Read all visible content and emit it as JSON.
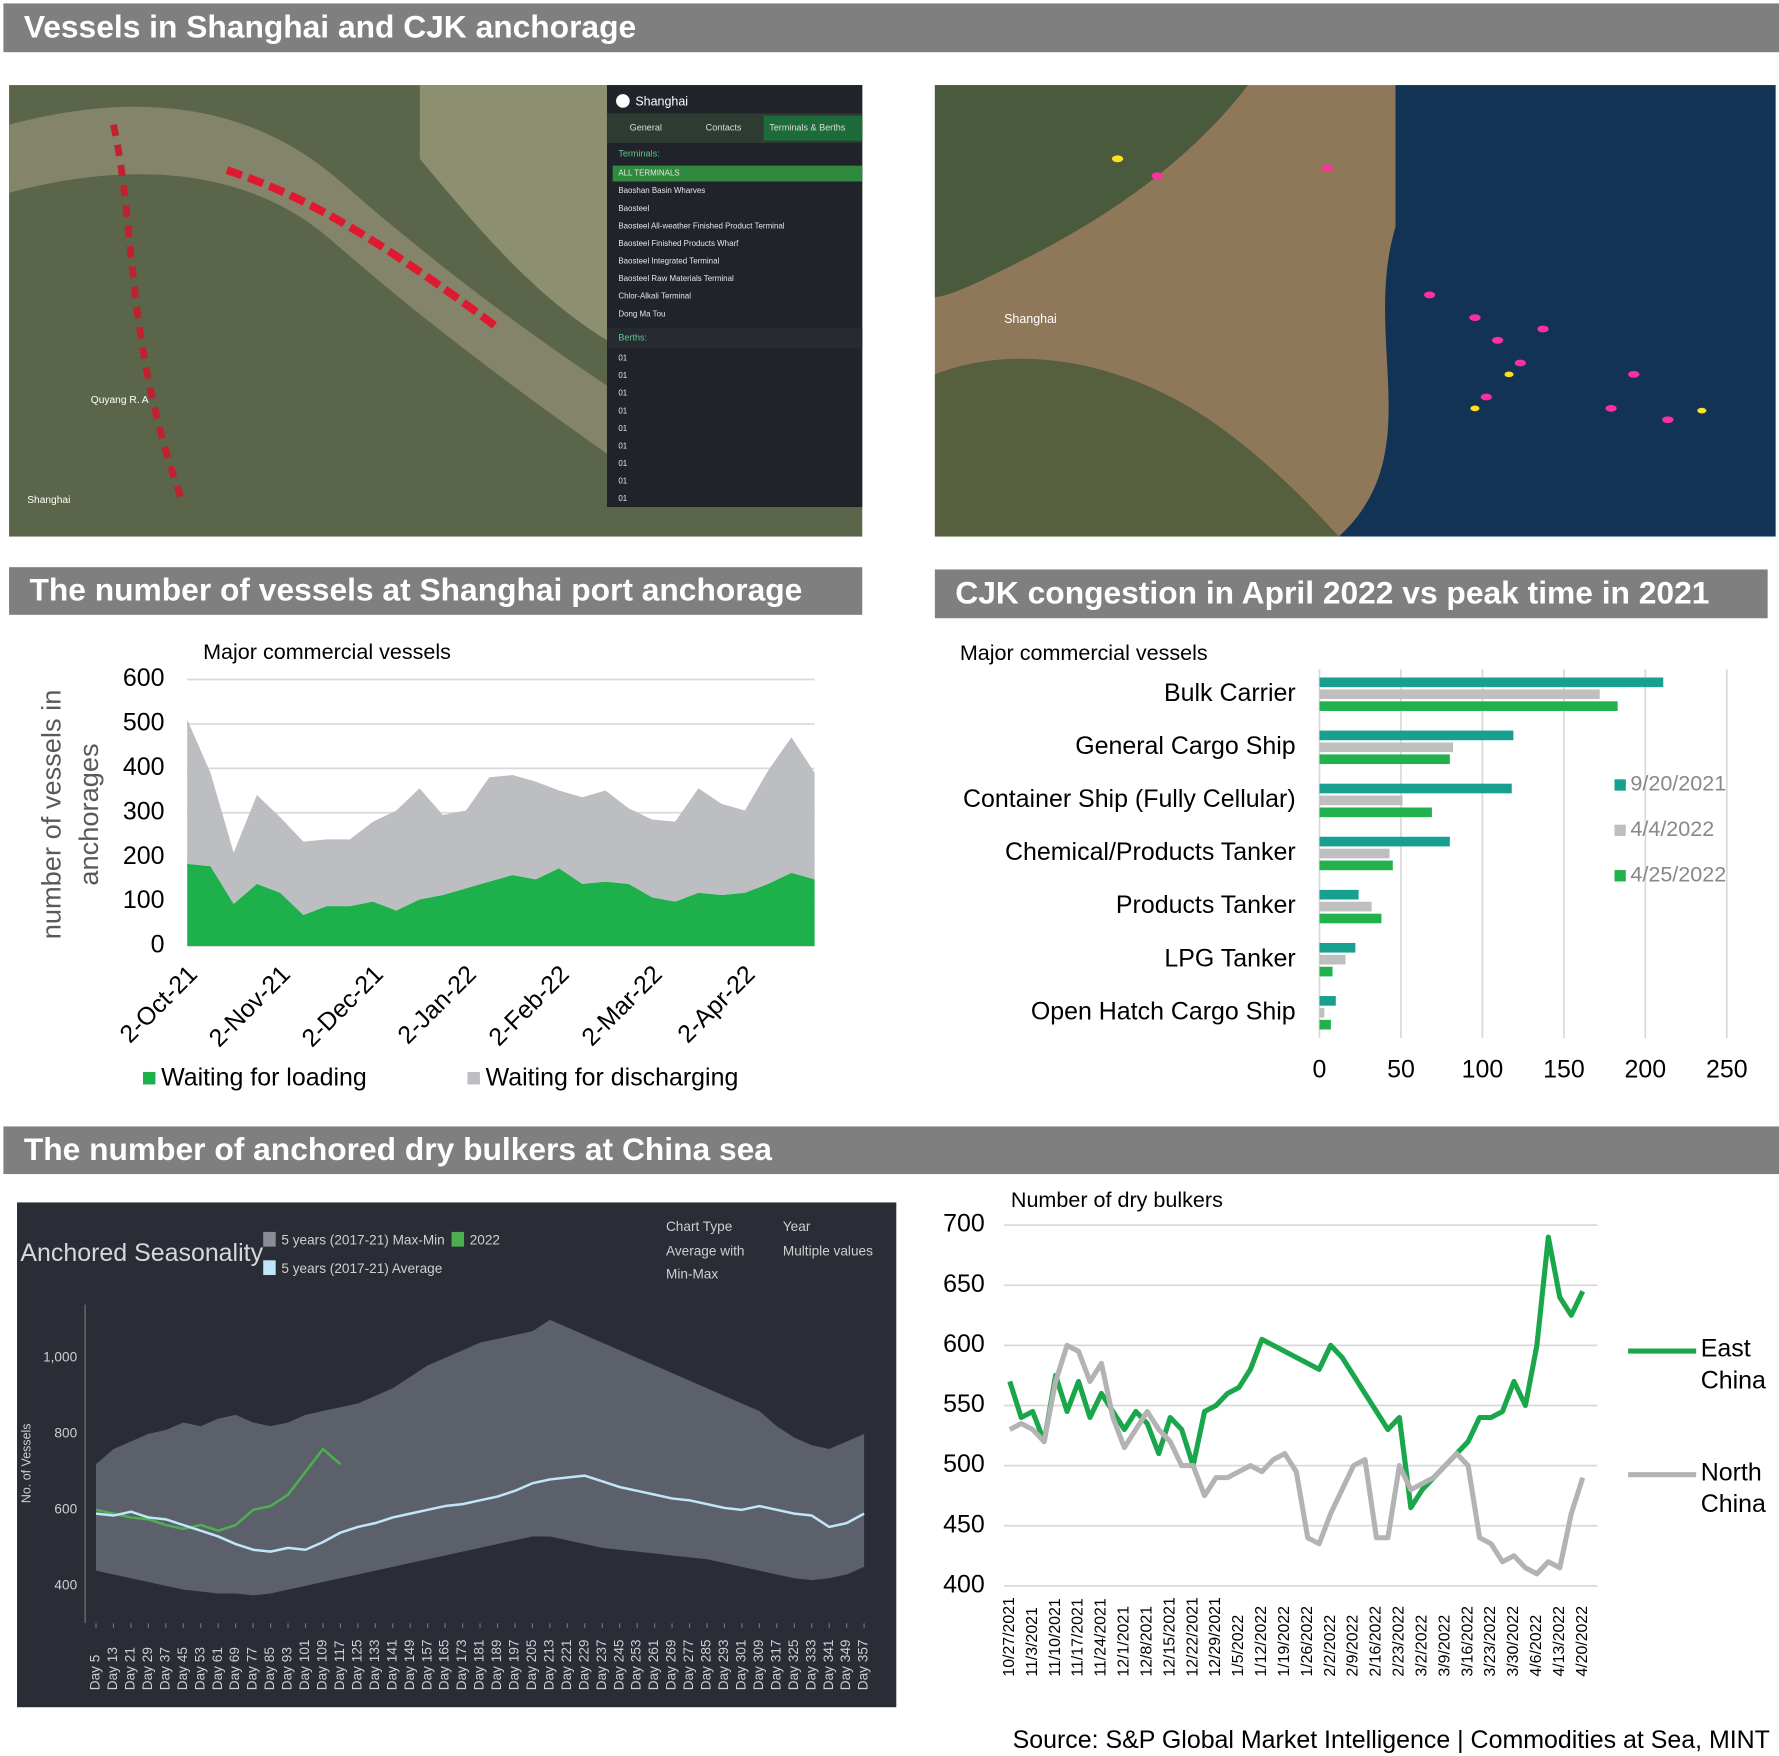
{
  "headers": [
    "Vessels in Shanghai and CJK anchorage",
    "The number of vessels at Shanghai port anchorage",
    "CJK congestion in April 2022 vs peak time in 2021",
    "The number of anchored dry bulkers at China sea"
  ],
  "maps": {
    "left": {
      "labels": [
        "Quyang R. A",
        "Shanghai"
      ],
      "panel": {
        "title": "Shanghai",
        "tabs": [
          "General",
          "Contacts",
          "Terminals & Berths"
        ],
        "terminals_label": "Terminals:",
        "terminals": [
          "ALL TERMINALS",
          "Baoshan Basin Wharves",
          "Baosteel",
          "Baosteel All-weather Finished Product Terminal",
          "Baosteel Finished Products Wharf",
          "Baosteel Integrated Terminal",
          "Baosteel Raw Materials Terminal",
          "Chlor-Alkali Terminal",
          "Dong Ma Tou"
        ],
        "berths_label": "Berths:",
        "berths": [
          "01",
          "01",
          "01",
          "01",
          "01",
          "01",
          "01",
          "01",
          "01"
        ]
      }
    },
    "right": {
      "labels": [
        "Shanghai"
      ]
    }
  },
  "chart_data": [
    {
      "type": "area",
      "stacked": true,
      "subtitle": "Major commercial vessels",
      "y_label": [
        "number of vessels in",
        "anchorages"
      ],
      "categories": [
        "2-Oct-21",
        null,
        null,
        null,
        "2-Nov-21",
        null,
        null,
        null,
        "2-Dec-21",
        null,
        null,
        null,
        "2-Jan-22",
        null,
        null,
        null,
        "2-Feb-22",
        null,
        null,
        null,
        "2-Mar-22",
        null,
        null,
        null,
        "2-Apr-22",
        null,
        null,
        null
      ],
      "series": [
        {
          "name": "Waiting for loading",
          "color": "#1db04b",
          "values": [
            185,
            180,
            95,
            140,
            120,
            70,
            90,
            90,
            100,
            80,
            105,
            115,
            130,
            145,
            160,
            150,
            175,
            140,
            145,
            140,
            110,
            100,
            120,
            115,
            120,
            140,
            165,
            150
          ]
        },
        {
          "name": "Waiting for discharging",
          "color": "#bdbec2",
          "values": [
            325,
            210,
            115,
            200,
            170,
            165,
            150,
            150,
            180,
            225,
            250,
            180,
            175,
            235,
            225,
            220,
            175,
            195,
            205,
            170,
            175,
            180,
            235,
            205,
            185,
            255,
            305,
            240
          ]
        }
      ],
      "ylim": [
        0,
        600
      ],
      "yticks": [
        0,
        100,
        200,
        300,
        400,
        500,
        600
      ],
      "grid": true
    },
    {
      "type": "hbar",
      "subtitle": "Major commercial vessels",
      "categories": [
        "Bulk Carrier",
        "General Cargo Ship",
        "Container Ship (Fully Cellular)",
        "Chemical/Products Tanker",
        "Products Tanker",
        "LPG Tanker",
        "Open Hatch Cargo Ship"
      ],
      "series": [
        {
          "name": "9/20/2021",
          "color": "#17a08f",
          "values": [
            211,
            119,
            118,
            80,
            24,
            22,
            10
          ]
        },
        {
          "name": "4/4/2022",
          "color": "#bfbfbf",
          "values": [
            172,
            82,
            51,
            43,
            32,
            16,
            3
          ]
        },
        {
          "name": "4/25/2022",
          "color": "#22b14c",
          "values": [
            183,
            80,
            69,
            45,
            38,
            8,
            7
          ]
        }
      ],
      "xlim": [
        0,
        250
      ],
      "xticks": [
        0,
        50,
        100,
        150,
        200,
        250
      ],
      "grid": true
    },
    {
      "type": "band",
      "title": "Anchored Seasonality",
      "y_label": "No. of Vessels",
      "controls": [
        {
          "label": "Chart Type",
          "value": "Average with Min-Max"
        },
        {
          "label": "Year",
          "value": "Multiple values"
        }
      ],
      "x": [
        5,
        13,
        21,
        29,
        37,
        45,
        53,
        61,
        69,
        77,
        85,
        93,
        101,
        109,
        117,
        125,
        133,
        141,
        149,
        157,
        165,
        173,
        181,
        189,
        197,
        205,
        213,
        221,
        229,
        237,
        245,
        253,
        261,
        269,
        277,
        285,
        293,
        301,
        309,
        317,
        325,
        333,
        341,
        349,
        357
      ],
      "band": {
        "name": "5 years (2017-21) Max-Min",
        "color": "#5c606b",
        "high": [
          720,
          760,
          780,
          800,
          810,
          830,
          820,
          840,
          850,
          830,
          820,
          830,
          850,
          860,
          870,
          880,
          900,
          920,
          950,
          980,
          1000,
          1020,
          1040,
          1050,
          1060,
          1070,
          1100,
          1080,
          1060,
          1040,
          1020,
          1000,
          980,
          960,
          940,
          920,
          900,
          880,
          860,
          820,
          790,
          770,
          760,
          780,
          800
        ],
        "low": [
          440,
          430,
          420,
          410,
          400,
          390,
          385,
          380,
          380,
          375,
          380,
          390,
          400,
          410,
          420,
          430,
          440,
          450,
          460,
          470,
          480,
          490,
          500,
          510,
          520,
          530,
          530,
          520,
          510,
          500,
          495,
          490,
          485,
          480,
          475,
          470,
          460,
          450,
          440,
          430,
          420,
          415,
          420,
          430,
          450
        ]
      },
      "series": [
        {
          "name": "2022",
          "color": "#4cb050",
          "values": [
            600,
            590,
            580,
            575,
            560,
            550,
            560,
            545,
            560,
            600,
            610,
            640,
            700,
            760,
            720,
            null,
            null,
            null,
            null,
            null,
            null,
            null,
            null,
            null,
            null,
            null,
            null,
            null,
            null,
            null,
            null,
            null,
            null,
            null,
            null,
            null,
            null,
            null,
            null,
            null,
            null,
            null,
            null,
            null,
            null
          ]
        },
        {
          "name": "5 years (2017-21) Average",
          "color": "#bfe7f7",
          "values": [
            590,
            585,
            595,
            580,
            575,
            560,
            545,
            530,
            510,
            495,
            490,
            500,
            495,
            515,
            540,
            555,
            565,
            580,
            590,
            600,
            610,
            615,
            625,
            635,
            650,
            670,
            680,
            685,
            690,
            675,
            660,
            650,
            640,
            630,
            625,
            615,
            605,
            600,
            610,
            600,
            590,
            585,
            555,
            565,
            590
          ]
        }
      ],
      "xlim": [
        0,
        365
      ],
      "xticks": [
        {
          "value": 5,
          "label": "Day 5"
        },
        {
          "value": 13,
          "label": "Day 13"
        },
        {
          "value": 21,
          "label": "Day 21"
        },
        {
          "value": 29,
          "label": "Day 29"
        },
        {
          "value": 37,
          "label": "Day 37"
        },
        {
          "value": 45,
          "label": "Day 45"
        },
        {
          "value": 53,
          "label": "Day 53"
        },
        {
          "value": 61,
          "label": "Day 61"
        },
        {
          "value": 69,
          "label": "Day 69"
        },
        {
          "value": 77,
          "label": "Day 77"
        },
        {
          "value": 85,
          "label": "Day 85"
        },
        {
          "value": 93,
          "label": "Day 93"
        },
        {
          "value": 101,
          "label": "Day 101"
        },
        {
          "value": 109,
          "label": "Day 109"
        },
        {
          "value": 117,
          "label": "Day 117"
        },
        {
          "value": 125,
          "label": "Day 125"
        },
        {
          "value": 133,
          "label": "Day 133"
        },
        {
          "value": 141,
          "label": "Day 141"
        },
        {
          "value": 149,
          "label": "Day 149"
        },
        {
          "value": 157,
          "label": "Day 157"
        },
        {
          "value": 165,
          "label": "Day 165"
        },
        {
          "value": 173,
          "label": "Day 173"
        },
        {
          "value": 181,
          "label": "Day 181"
        },
        {
          "value": 189,
          "label": "Day 189"
        },
        {
          "value": 197,
          "label": "Day 197"
        },
        {
          "value": 205,
          "label": "Day 205"
        },
        {
          "value": 213,
          "label": "Day 213"
        },
        {
          "value": 221,
          "label": "Day 221"
        },
        {
          "value": 229,
          "label": "Day 229"
        },
        {
          "value": 237,
          "label": "Day 237"
        },
        {
          "value": 245,
          "label": "Day 245"
        },
        {
          "value": 253,
          "label": "Day 253"
        },
        {
          "value": 261,
          "label": "Day 261"
        },
        {
          "value": 269,
          "label": "Day 269"
        },
        {
          "value": 277,
          "label": "Day 277"
        },
        {
          "value": 285,
          "label": "Day 285"
        },
        {
          "value": 293,
          "label": "Day 293"
        },
        {
          "value": 301,
          "label": "Day 301"
        },
        {
          "value": 309,
          "label": "Day 309"
        },
        {
          "value": 317,
          "label": "Day 317"
        },
        {
          "value": 325,
          "label": "Day 325"
        },
        {
          "value": 333,
          "label": "Day 333"
        },
        {
          "value": 341,
          "label": "Day 341"
        },
        {
          "value": 349,
          "label": "Day 349"
        },
        {
          "value": 357,
          "label": "Day 357"
        }
      ],
      "ylim": [
        300,
        1150
      ],
      "yticks": [
        400,
        600,
        800,
        {
          "value": 1000,
          "label": "1,000"
        }
      ]
    },
    {
      "type": "line",
      "subtitle": "Number of dry bulkers",
      "categories": [
        "10/27/2021",
        null,
        "11/3/2021",
        null,
        "11/10/2021",
        null,
        "11/17/2021",
        null,
        "11/24/2021",
        null,
        "12/1/2021",
        null,
        "12/8/2021",
        null,
        "12/15/2021",
        null,
        "12/22/2021",
        null,
        "12/29/2021",
        null,
        "1/5/2022",
        null,
        "1/12/2022",
        null,
        "1/19/2022",
        null,
        "1/26/2022",
        null,
        "2/2/2022",
        null,
        "2/9/2022",
        null,
        "2/16/2022",
        null,
        "2/23/2022",
        null,
        "3/2/2022",
        null,
        "3/9/2022",
        null,
        "3/16/2022",
        null,
        "3/23/2022",
        null,
        "3/30/2022",
        null,
        "4/6/2022",
        null,
        "4/13/2022",
        null,
        "4/20/2022"
      ],
      "series": [
        {
          "name": "East China",
          "color": "#1aa64a",
          "values": [
            570,
            540,
            545,
            520,
            575,
            545,
            570,
            540,
            560,
            545,
            530,
            545,
            535,
            510,
            540,
            530,
            500,
            545,
            550,
            560,
            565,
            580,
            605,
            600,
            595,
            590,
            585,
            580,
            600,
            590,
            575,
            560,
            545,
            530,
            540,
            465,
            480,
            490,
            500,
            510,
            520,
            540,
            540,
            545,
            570,
            550,
            600,
            690,
            640,
            625,
            645
          ]
        },
        {
          "name": "North China",
          "color": "#b3b3b3",
          "values": [
            530,
            535,
            530,
            520,
            570,
            600,
            595,
            570,
            585,
            540,
            515,
            530,
            545,
            530,
            520,
            500,
            500,
            475,
            490,
            490,
            495,
            500,
            495,
            505,
            510,
            495,
            440,
            435,
            460,
            480,
            500,
            505,
            440,
            440,
            500,
            480,
            485,
            490,
            500,
            510,
            500,
            440,
            435,
            420,
            425,
            415,
            410,
            420,
            415,
            460,
            490
          ]
        }
      ],
      "ylim": [
        400,
        700
      ],
      "yticks": [
        400,
        450,
        500,
        550,
        600,
        650,
        700
      ],
      "grid": true
    }
  ],
  "source": "Source: S&P Global Market Intelligence | Commodities at Sea, MINT"
}
